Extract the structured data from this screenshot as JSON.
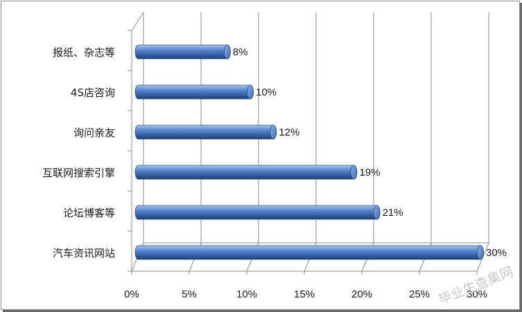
{
  "chart_data": {
    "type": "bar",
    "orientation": "horizontal",
    "style": "3d-cylinder",
    "categories": [
      "报纸、杂志等",
      "4S店咨询",
      "询问亲友",
      "互联网搜索引擎",
      "论坛博客等",
      "汽车资讯网站"
    ],
    "values": [
      8,
      10,
      12,
      19,
      21,
      30
    ],
    "data_labels": [
      "8%",
      "10%",
      "12%",
      "19%",
      "21%",
      "30%"
    ],
    "x_ticks": [
      "0%",
      "5%",
      "10%",
      "15%",
      "20%",
      "25%",
      "30%"
    ],
    "xlim": [
      0,
      30
    ],
    "grid": true,
    "bar_color": "#4f81bd",
    "title": "",
    "xlabel": "",
    "ylabel": ""
  },
  "watermark": "毕业生查集网"
}
